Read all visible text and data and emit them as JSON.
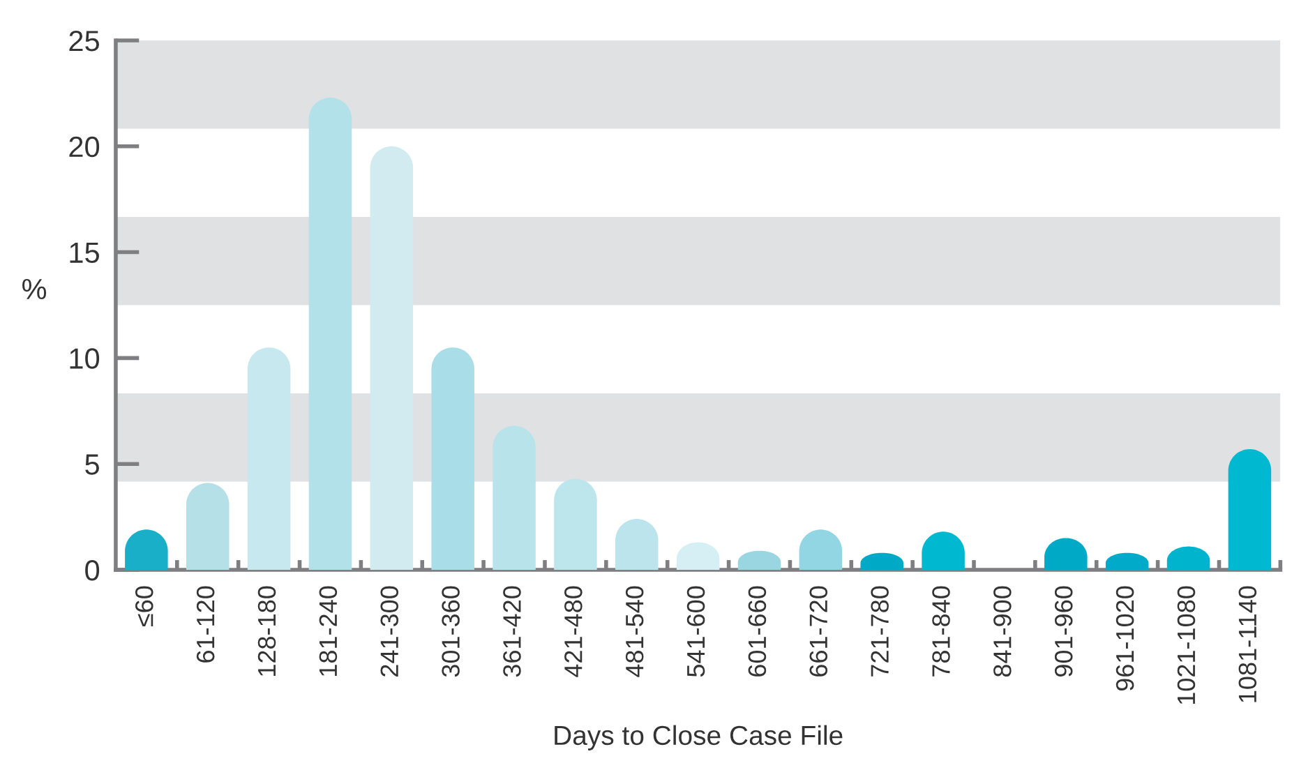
{
  "chart_data": {
    "type": "bar",
    "xlabel": "Days to Close Case File",
    "ylabel": "%",
    "categories": [
      "≤60",
      "61-120",
      "128-180",
      "181-240",
      "241-300",
      "301-360",
      "361-420",
      "421-480",
      "481-540",
      "541-600",
      "601-660",
      "661-720",
      "721-780",
      "781-840",
      "841-900",
      "901-960",
      "961-1020",
      "1021-1080",
      "1081-1140"
    ],
    "values": [
      1.9,
      4.1,
      10.5,
      22.3,
      20.0,
      10.5,
      6.8,
      4.3,
      2.4,
      1.3,
      0.9,
      1.9,
      0.8,
      1.8,
      0,
      1.5,
      0.8,
      1.1,
      5.7
    ],
    "colors": [
      "#1aafc8",
      "#b5e0e8",
      "#c8e8ef",
      "#b3e1e9",
      "#d1ebf0",
      "#a9dde7",
      "#b8e3eb",
      "#bde5ec",
      "#bce4ec",
      "#d6eff4",
      "#99d6e2",
      "#93d6e3",
      "#00a9c6",
      "#00b8d0",
      "#00b8d0",
      "#00a9c6",
      "#00aac8",
      "#00b4ce",
      "#00b9d1"
    ],
    "ylim": [
      0,
      25
    ],
    "yticks": [
      0,
      5,
      10,
      15,
      20,
      25
    ],
    "grid": false,
    "legend": false
  }
}
